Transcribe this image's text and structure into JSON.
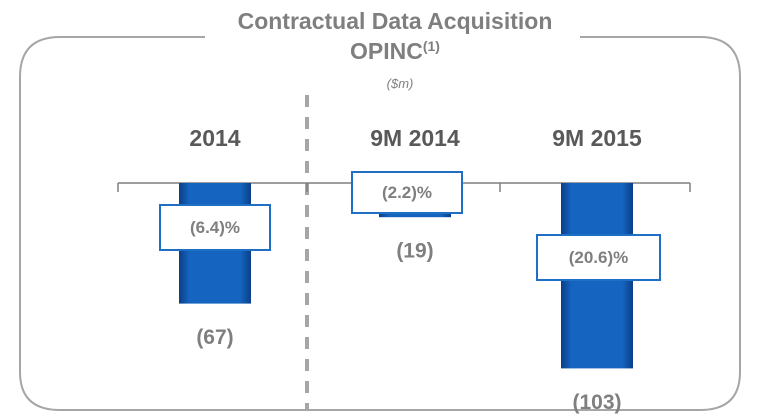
{
  "chart_data": {
    "type": "bar",
    "title": "Contractual Data Acquisition OPINC",
    "title_footnote": "(1)",
    "subtitle": "($m)",
    "categories": [
      "2014",
      "9M 2014",
      "9M 2015"
    ],
    "values": [
      -67,
      -19,
      -103
    ],
    "value_labels": [
      "(67)",
      "(19)",
      "(103)"
    ],
    "annotations": [
      "(6.4)%",
      "(2.2)%",
      "(20.6)%"
    ],
    "color": "#1565c0"
  }
}
